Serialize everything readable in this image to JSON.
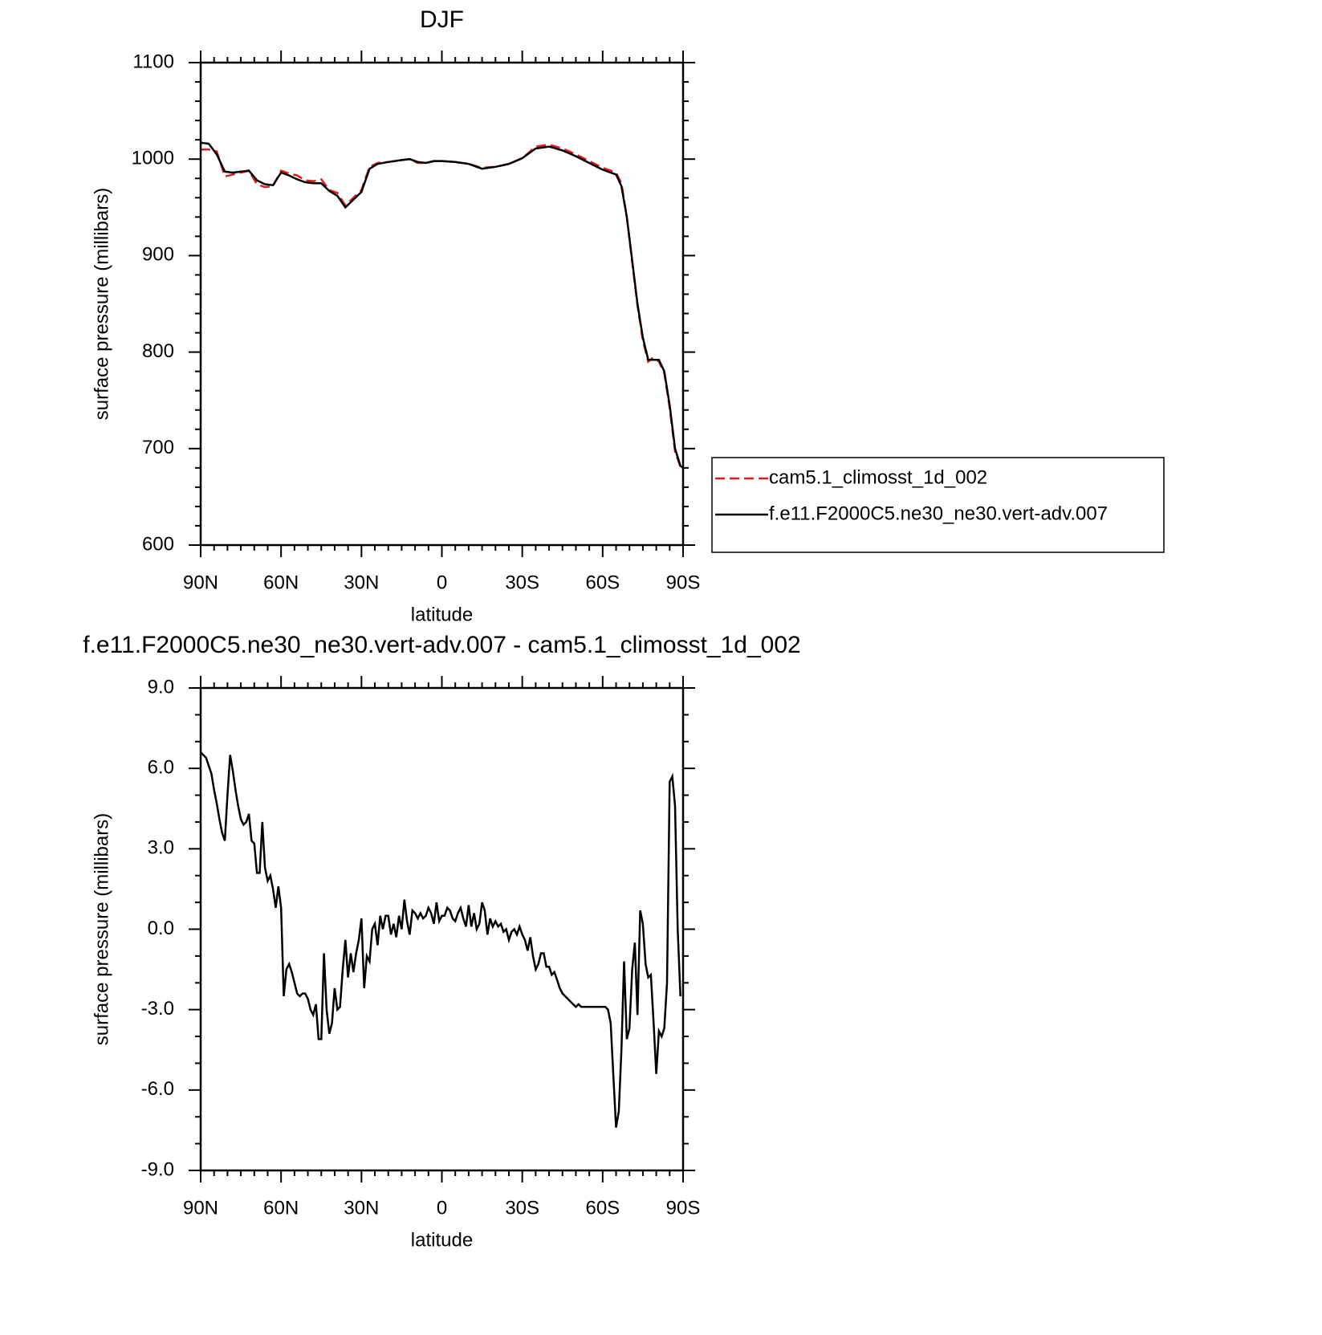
{
  "chart_data": [
    {
      "type": "line",
      "title": "DJF",
      "xlabel": "latitude",
      "ylabel": "surface pressure (millibars)",
      "x": [
        90,
        87,
        84,
        81,
        78,
        75,
        72,
        69,
        66,
        63,
        60,
        57,
        54,
        51,
        48,
        45,
        42,
        39,
        36,
        33,
        30,
        27,
        24,
        20,
        15,
        12,
        9,
        6,
        3,
        0,
        -5,
        -10,
        -15,
        -20,
        -25,
        -30,
        -35,
        -40,
        -45,
        -50,
        -55,
        -60,
        -65,
        -67,
        -69,
        -71,
        -73,
        -75,
        -77,
        -79,
        -81,
        -83,
        -85,
        -87,
        -89,
        -90
      ],
      "series": [
        {
          "name": "cam5.1_climosst_1d_002",
          "color": "#e41a1c",
          "dash": "dashed",
          "values": [
            1010,
            1010,
            1008,
            982,
            984,
            986,
            988,
            974,
            971,
            972,
            988,
            985,
            983,
            978,
            977,
            979,
            968,
            965,
            952,
            960,
            968,
            992,
            996,
            997,
            999,
            1000,
            996,
            996,
            998,
            998,
            997,
            995,
            991,
            992,
            995,
            1001,
            1013,
            1015,
            1011,
            1005,
            998,
            991,
            986,
            975,
            940,
            893,
            848,
            812,
            790,
            795,
            790,
            778,
            742,
            697,
            681,
            682
          ]
        },
        {
          "name": "f.e11.F2000C5.ne30_ne30.vert-adv.007",
          "color": "#000000",
          "dash": "solid",
          "values": [
            1017,
            1016,
            1005,
            987,
            986,
            987,
            988,
            978,
            974,
            973,
            986,
            983,
            979,
            976,
            975,
            975,
            967,
            962,
            950,
            958,
            966,
            990,
            995,
            997,
            999,
            1000,
            997,
            996,
            998,
            998,
            997,
            995,
            990,
            992,
            995,
            1001,
            1011,
            1013,
            1009,
            1003,
            996,
            989,
            984,
            972,
            940,
            895,
            850,
            815,
            792,
            792,
            792,
            780,
            745,
            700,
            682,
            680
          ]
        }
      ],
      "xlim": [
        90,
        -90
      ],
      "xticks": [
        {
          "value": 90,
          "label": "90N"
        },
        {
          "value": 60,
          "label": "60N"
        },
        {
          "value": 30,
          "label": "30N"
        },
        0,
        {
          "value": -30,
          "label": "30S"
        },
        {
          "value": -60,
          "label": "60S"
        },
        {
          "value": -90,
          "label": "90S"
        }
      ],
      "ylim": [
        600,
        1100
      ],
      "yticks": [
        600,
        700,
        800,
        900,
        1000,
        1100
      ],
      "x_minor_per_major": 5,
      "y_minor_per_major": 4,
      "legend": "outside-right"
    },
    {
      "type": "line",
      "title": "f.e11.F2000C5.ne30_ne30.vert-adv.007 - cam5.1_climosst_1d_002",
      "xlabel": "latitude",
      "ylabel": "surface pressure (millibars)",
      "x": [
        90,
        89,
        88,
        87,
        86,
        85,
        84,
        83,
        82,
        81,
        80,
        79,
        78,
        77,
        76,
        75,
        74,
        73,
        72,
        71,
        70,
        69,
        68,
        67,
        66,
        65,
        64,
        63,
        62,
        61,
        60,
        59,
        58,
        57,
        56,
        55,
        54,
        53,
        52,
        51,
        50,
        49,
        48,
        47,
        46,
        45,
        44,
        43,
        42,
        41,
        40,
        39,
        38,
        37,
        36,
        35,
        34,
        33,
        32,
        31,
        30,
        29,
        28,
        27,
        26,
        25,
        24,
        23,
        22,
        21,
        20,
        19,
        18,
        17,
        16,
        15,
        14,
        13,
        12,
        11,
        10,
        9,
        8,
        7,
        6,
        5,
        4,
        3,
        2,
        1,
        0,
        -1,
        -2,
        -3,
        -4,
        -5,
        -6,
        -7,
        -8,
        -9,
        -10,
        -11,
        -12,
        -13,
        -14,
        -15,
        -16,
        -17,
        -18,
        -19,
        -20,
        -21,
        -22,
        -23,
        -24,
        -25,
        -26,
        -27,
        -28,
        -29,
        -30,
        -31,
        -32,
        -33,
        -34,
        -35,
        -36,
        -37,
        -38,
        -39,
        -40,
        -41,
        -42,
        -43,
        -44,
        -45,
        -46,
        -47,
        -48,
        -49,
        -50,
        -51,
        -52,
        -53,
        -54,
        -55,
        -56,
        -57,
        -58,
        -59,
        -60,
        -61,
        -62,
        -63,
        -64,
        -65,
        -66,
        -67,
        -68,
        -69,
        -70,
        -71,
        -72,
        -73,
        -74,
        -75,
        -76,
        -77,
        -78,
        -79,
        -80,
        -81,
        -82,
        -83,
        -84,
        -85,
        -86,
        -87,
        -88,
        -89
      ],
      "series": [
        {
          "name": "f.e11.F2000C5.ne30_ne30.vert-adv.007 - cam5.1_climosst_1d_002",
          "color": "#000000",
          "dash": "solid",
          "values": [
            6.6,
            6.5,
            6.4,
            6.1,
            5.8,
            5.2,
            4.7,
            4.1,
            3.6,
            3.3,
            5.0,
            6.5,
            5.9,
            5.2,
            4.6,
            4.1,
            3.9,
            4.0,
            4.3,
            3.3,
            3.2,
            2.1,
            2.1,
            4.0,
            2.3,
            1.8,
            2.0,
            1.5,
            0.8,
            1.6,
            0.8,
            -2.5,
            -1.5,
            -1.3,
            -1.6,
            -2.0,
            -2.4,
            -2.5,
            -2.4,
            -2.4,
            -2.6,
            -3.0,
            -3.2,
            -2.8,
            -4.1,
            -4.1,
            -0.9,
            -3.0,
            -3.9,
            -3.5,
            -2.2,
            -3.0,
            -2.9,
            -1.5,
            -0.4,
            -1.8,
            -0.9,
            -1.6,
            -0.9,
            -0.4,
            0.4,
            -2.2,
            -1.0,
            -1.2,
            0.0,
            0.2,
            -0.6,
            0.5,
            0.0,
            0.5,
            0.5,
            -0.2,
            0.2,
            -0.3,
            0.5,
            0.0,
            1.1,
            0.3,
            -0.2,
            0.7,
            0.6,
            0.4,
            0.6,
            0.4,
            0.5,
            0.8,
            0.6,
            0.2,
            1.0,
            0.3,
            0.5,
            0.5,
            0.8,
            0.7,
            0.4,
            0.3,
            0.6,
            0.8,
            0.4,
            0.1,
            0.9,
            0.1,
            0.6,
            0.0,
            0.2,
            1.0,
            0.7,
            -0.2,
            0.4,
            0.1,
            0.3,
            0.1,
            0.2,
            -0.1,
            0.0,
            -0.4,
            -0.1,
            0.0,
            -0.2,
            0.1,
            -0.2,
            -0.4,
            -0.8,
            -0.3,
            -1.0,
            -1.5,
            -1.3,
            -0.9,
            -0.9,
            -1.4,
            -1.4,
            -1.7,
            -1.6,
            -1.9,
            -2.2,
            -2.4,
            -2.5,
            -2.6,
            -2.7,
            -2.8,
            -2.9,
            -2.8,
            -2.9,
            -2.9,
            -2.9,
            -2.9,
            -2.9,
            -2.9,
            -2.9,
            -2.9,
            -2.9,
            -2.9,
            -3.0,
            -3.5,
            -5.5,
            -7.4,
            -6.8,
            -4.5,
            -1.2,
            -4.1,
            -3.7,
            -1.5,
            -0.5,
            -3.2,
            0.7,
            0.2,
            -1.3,
            -1.8,
            -1.7,
            -3.5,
            -5.4,
            -3.8,
            -4.0,
            -3.7,
            -2.0,
            5.5,
            5.7,
            4.6,
            0.0,
            -2.5
          ]
        }
      ],
      "xlim": [
        90,
        -90
      ],
      "xticks": [
        {
          "value": 90,
          "label": "90N"
        },
        {
          "value": 60,
          "label": "60N"
        },
        {
          "value": 30,
          "label": "30N"
        },
        0,
        {
          "value": -30,
          "label": "30S"
        },
        {
          "value": -60,
          "label": "60S"
        },
        {
          "value": -90,
          "label": "90S"
        }
      ],
      "ylim": [
        -9,
        9
      ],
      "yticks": [
        {
          "value": -9,
          "label": "-9.0"
        },
        {
          "value": -6,
          "label": "-6.0"
        },
        {
          "value": -3,
          "label": "-3.0"
        },
        {
          "value": 0,
          "label": "0.0"
        },
        {
          "value": 3,
          "label": "3.0"
        },
        {
          "value": 6,
          "label": "6.0"
        },
        {
          "value": 9,
          "label": "9.0"
        }
      ],
      "x_minor_per_major": 5,
      "y_minor_per_major": 2
    }
  ]
}
